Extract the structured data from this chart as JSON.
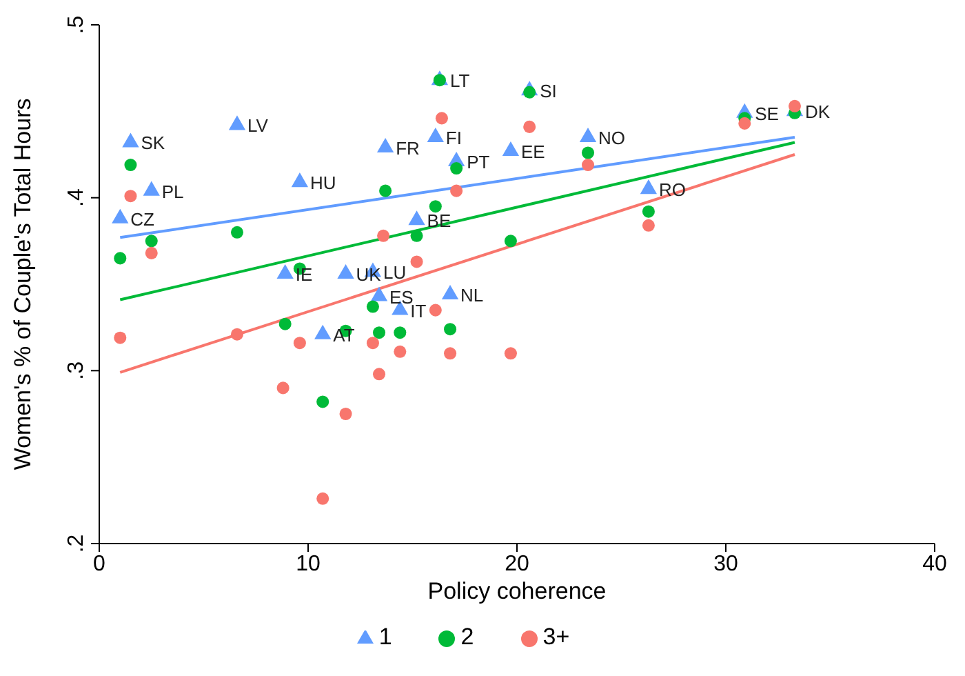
{
  "chart_data": {
    "type": "scatter",
    "xlabel": "Policy coherence",
    "ylabel": "Women's % of Couple's Total Hours",
    "xlim": [
      0,
      40
    ],
    "xticks": [
      0,
      10,
      20,
      30,
      40
    ],
    "ylim": [
      0.2,
      0.5
    ],
    "yticks": [
      {
        "value": 0.2,
        "label": ".2"
      },
      {
        "value": 0.3,
        "label": ".3"
      },
      {
        "value": 0.4,
        "label": ".4"
      },
      {
        "value": 0.5,
        "label": ".5"
      }
    ],
    "legend": "bottom",
    "series": [
      {
        "name": "1",
        "marker": "triangle",
        "color": "#619cff",
        "x": [
          1.5,
          6.6,
          2.5,
          1.0,
          9.6,
          8.9,
          11.8,
          13.1,
          13.4,
          14.4,
          16.8,
          10.7,
          13.7,
          16.1,
          17.1,
          15.2,
          16.3,
          20.6,
          19.7,
          23.4,
          30.9,
          33.3,
          26.3
        ],
        "values": [
          0.432,
          0.442,
          0.404,
          0.388,
          0.409,
          0.356,
          0.356,
          0.357,
          0.343,
          0.335,
          0.344,
          0.321,
          0.429,
          0.435,
          0.421,
          0.387,
          0.468,
          0.462,
          0.427,
          0.435,
          0.449,
          0.45,
          0.405
        ],
        "value_labels": [
          "SK",
          "LV",
          "PL",
          "CZ",
          "HU",
          "IE",
          "UK",
          "LU",
          "ES",
          "IT",
          "NL",
          "AT",
          "FR",
          "FI",
          "PT",
          "BE",
          "LT",
          "SI",
          "EE",
          "NO",
          "SE",
          "DK",
          "RO"
        ]
      },
      {
        "name": "2",
        "marker": "circle",
        "color": "#00ba38",
        "x": [
          1.5,
          2.5,
          1.0,
          6.6,
          9.6,
          8.9,
          10.7,
          17.1,
          13.7,
          16.1,
          15.2,
          13.1,
          16.3,
          11.8,
          13.4,
          14.4,
          16.8,
          20.6,
          23.4,
          30.9,
          33.3,
          26.3,
          19.7
        ],
        "values": [
          0.419,
          0.375,
          0.365,
          0.38,
          0.359,
          0.327,
          0.282,
          0.417,
          0.404,
          0.395,
          0.378,
          0.337,
          0.468,
          0.323,
          0.322,
          0.322,
          0.324,
          0.461,
          0.426,
          0.446,
          0.449,
          0.392,
          0.375
        ]
      },
      {
        "name": "3+",
        "marker": "circle",
        "color": "#f8766d",
        "x": [
          1.5,
          2.5,
          1.0,
          6.6,
          9.6,
          8.8,
          10.7,
          16.4,
          17.1,
          13.6,
          15.2,
          16.1,
          13.1,
          14.4,
          16.8,
          19.7,
          13.4,
          11.8,
          20.6,
          23.4,
          30.9,
          33.3,
          26.3
        ],
        "values": [
          0.401,
          0.368,
          0.319,
          0.321,
          0.316,
          0.29,
          0.226,
          0.446,
          0.404,
          0.378,
          0.363,
          0.335,
          0.316,
          0.311,
          0.31,
          0.31,
          0.298,
          0.275,
          0.441,
          0.419,
          0.443,
          0.453,
          0.384
        ]
      },
      {
        "type": "line",
        "color": "#619cff",
        "x": [
          1.0,
          33.3
        ],
        "values": [
          0.377,
          0.435
        ]
      },
      {
        "type": "line",
        "color": "#00ba38",
        "x": [
          1.0,
          33.3
        ],
        "values": [
          0.341,
          0.432
        ]
      },
      {
        "type": "line",
        "color": "#f8766d",
        "x": [
          1.0,
          33.3
        ],
        "values": [
          0.299,
          0.425
        ]
      }
    ]
  }
}
